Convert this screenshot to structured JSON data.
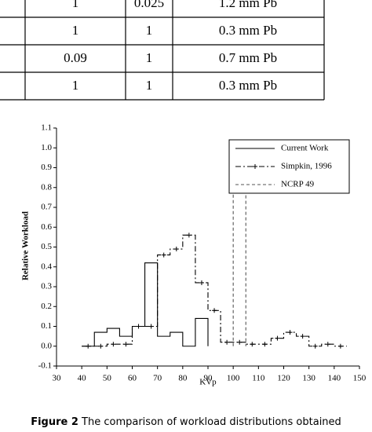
{
  "table": {
    "rows": [
      [
        "1",
        "0.025",
        "1.2 mm Pb"
      ],
      [
        "1",
        "1",
        "0.3 mm Pb"
      ],
      [
        "0.09",
        "1",
        "0.7 mm Pb"
      ],
      [
        "1",
        "1",
        "0.3 mm Pb"
      ]
    ]
  },
  "chart_data": {
    "type": "step",
    "xlabel": "KVp",
    "ylabel": "Relative Workload",
    "xlim": [
      30,
      150
    ],
    "ylim": [
      -0.1,
      1.1
    ],
    "xticks": [
      30,
      40,
      50,
      60,
      70,
      80,
      90,
      100,
      110,
      120,
      130,
      140,
      150
    ],
    "yticks": [
      -0.1,
      {
        "value": 0,
        "label": "0.0"
      },
      0.1,
      0.2,
      0.3,
      0.4,
      0.5,
      0.6,
      0.7,
      0.8,
      0.9,
      {
        "value": 1,
        "label": "1.0"
      },
      1.1
    ],
    "legend": "upper right",
    "series": [
      {
        "name": "Current Work",
        "color": "#000000",
        "linestyle": "solid",
        "bins": [
          40,
          45,
          50,
          55,
          60,
          65,
          70,
          75,
          80,
          85,
          90
        ],
        "values": [
          0,
          0.07,
          0.09,
          0.05,
          0.1,
          0.42,
          0.05,
          0.07,
          0,
          0.14
        ]
      },
      {
        "name": "Simpkin, 1996",
        "color": "#000000",
        "linestyle": "dashdot",
        "marker": "plus",
        "bins": [
          40,
          45,
          50,
          55,
          60,
          65,
          70,
          75,
          80,
          85,
          90,
          95,
          100,
          105,
          110,
          115,
          120,
          125,
          130,
          135,
          140,
          145
        ],
        "values": [
          0,
          0,
          0.01,
          0.01,
          0.1,
          0.1,
          0.46,
          0.49,
          0.56,
          0.32,
          0.18,
          0.02,
          0.02,
          0.01,
          0.01,
          0.04,
          0.07,
          0.05,
          0,
          0.01,
          0
        ]
      },
      {
        "name": "NCRP 49",
        "color": "#555555",
        "linestyle": "dashed",
        "bins": [
          100,
          105
        ],
        "values": [
          1.0
        ]
      }
    ]
  },
  "caption": {
    "label": "Figure 2",
    "text": "The comparison of workload distributions obtained"
  }
}
